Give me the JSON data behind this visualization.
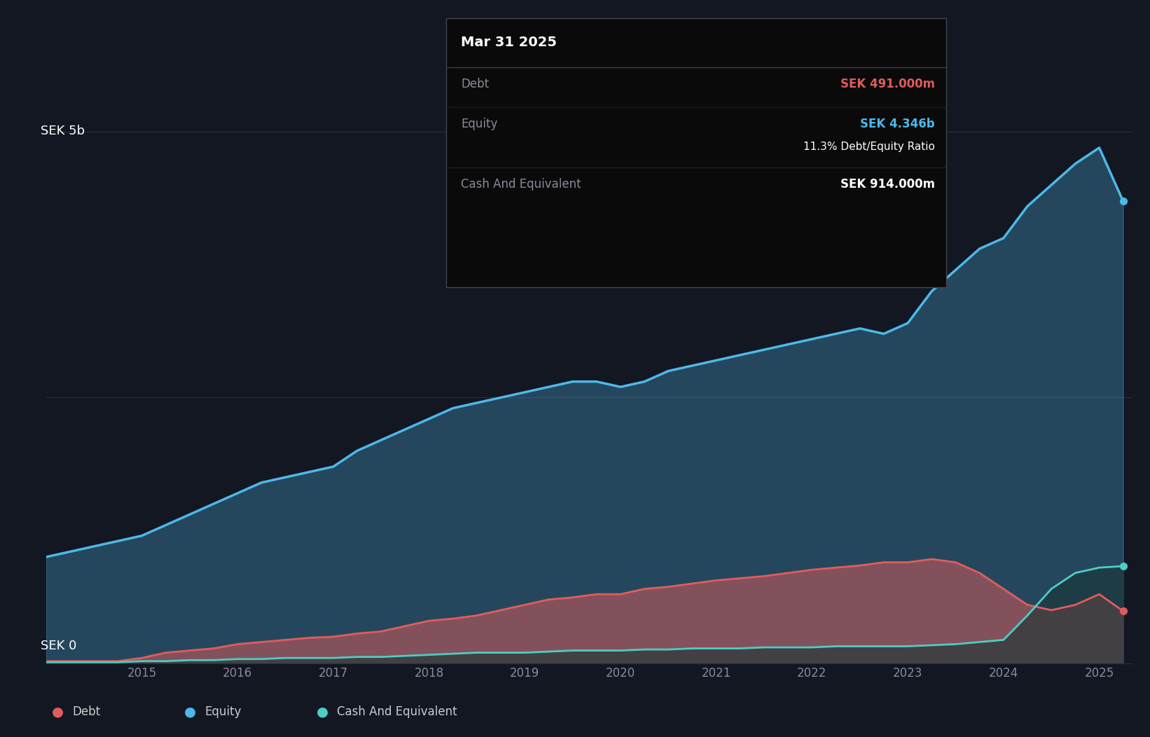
{
  "bg_color": "#131722",
  "plot_bg_color": "#131722",
  "grid_color": "#2a2e39",
  "y_label_top": "SEK 5b",
  "y_label_bottom": "SEK 0",
  "x_ticks": [
    "2015",
    "2016",
    "2017",
    "2018",
    "2019",
    "2020",
    "2021",
    "2022",
    "2023",
    "2024",
    "2025"
  ],
  "legend": [
    {
      "label": "Debt",
      "color": "#e05c5c"
    },
    {
      "label": "Equity",
      "color": "#4db8e8"
    },
    {
      "label": "Cash And Equivalent",
      "color": "#4ecdc4"
    }
  ],
  "tooltip": {
    "title": "Mar 31 2025",
    "debt_label": "Debt",
    "debt_value": "SEK 491.000m",
    "debt_color": "#e05c5c",
    "equity_label": "Equity",
    "equity_value": "SEK 4.346b",
    "equity_color": "#4db8e8",
    "ratio_text": "11.3% Debt/Equity Ratio",
    "cash_label": "Cash And Equivalent",
    "cash_value": "SEK 914.000m",
    "cash_color": "#ffffff"
  },
  "equity_data": {
    "dates": [
      2014.0,
      2014.25,
      2014.5,
      2014.75,
      2015.0,
      2015.25,
      2015.5,
      2015.75,
      2016.0,
      2016.25,
      2016.5,
      2016.75,
      2017.0,
      2017.25,
      2017.5,
      2017.75,
      2018.0,
      2018.25,
      2018.5,
      2018.75,
      2019.0,
      2019.25,
      2019.5,
      2019.75,
      2020.0,
      2020.25,
      2020.5,
      2020.75,
      2021.0,
      2021.25,
      2021.5,
      2021.75,
      2022.0,
      2022.25,
      2022.5,
      2022.75,
      2023.0,
      2023.25,
      2023.5,
      2023.75,
      2024.0,
      2024.25,
      2024.5,
      2024.75,
      2025.0,
      2025.25
    ],
    "values": [
      1.0,
      1.05,
      1.1,
      1.15,
      1.2,
      1.3,
      1.4,
      1.5,
      1.6,
      1.7,
      1.75,
      1.8,
      1.85,
      2.0,
      2.1,
      2.2,
      2.3,
      2.4,
      2.45,
      2.5,
      2.55,
      2.6,
      2.65,
      2.65,
      2.6,
      2.65,
      2.75,
      2.8,
      2.85,
      2.9,
      2.95,
      3.0,
      3.05,
      3.1,
      3.15,
      3.1,
      3.2,
      3.5,
      3.7,
      3.9,
      4.0,
      4.3,
      4.5,
      4.7,
      4.85,
      4.346
    ]
  },
  "debt_data": {
    "dates": [
      2014.0,
      2014.25,
      2014.5,
      2014.75,
      2015.0,
      2015.25,
      2015.5,
      2015.75,
      2016.0,
      2016.25,
      2016.5,
      2016.75,
      2017.0,
      2017.25,
      2017.5,
      2017.75,
      2018.0,
      2018.25,
      2018.5,
      2018.75,
      2019.0,
      2019.25,
      2019.5,
      2019.75,
      2020.0,
      2020.25,
      2020.5,
      2020.75,
      2021.0,
      2021.25,
      2021.5,
      2021.75,
      2022.0,
      2022.25,
      2022.5,
      2022.75,
      2023.0,
      2023.25,
      2023.5,
      2023.75,
      2024.0,
      2024.25,
      2024.5,
      2024.75,
      2025.0,
      2025.25
    ],
    "values": [
      0.02,
      0.02,
      0.02,
      0.02,
      0.05,
      0.1,
      0.12,
      0.14,
      0.18,
      0.2,
      0.22,
      0.24,
      0.25,
      0.28,
      0.3,
      0.35,
      0.4,
      0.42,
      0.45,
      0.5,
      0.55,
      0.6,
      0.62,
      0.65,
      0.65,
      0.7,
      0.72,
      0.75,
      0.78,
      0.8,
      0.82,
      0.85,
      0.88,
      0.9,
      0.92,
      0.95,
      0.95,
      0.98,
      0.95,
      0.85,
      0.7,
      0.55,
      0.5,
      0.55,
      0.65,
      0.491
    ]
  },
  "cash_data": {
    "dates": [
      2014.0,
      2014.25,
      2014.5,
      2014.75,
      2015.0,
      2015.25,
      2015.5,
      2015.75,
      2016.0,
      2016.25,
      2016.5,
      2016.75,
      2017.0,
      2017.25,
      2017.5,
      2017.75,
      2018.0,
      2018.25,
      2018.5,
      2018.75,
      2019.0,
      2019.25,
      2019.5,
      2019.75,
      2020.0,
      2020.25,
      2020.5,
      2020.75,
      2021.0,
      2021.25,
      2021.5,
      2021.75,
      2022.0,
      2022.25,
      2022.5,
      2022.75,
      2023.0,
      2023.25,
      2023.5,
      2023.75,
      2024.0,
      2024.25,
      2024.5,
      2024.75,
      2025.0,
      2025.25
    ],
    "values": [
      0.01,
      0.01,
      0.01,
      0.01,
      0.02,
      0.02,
      0.03,
      0.03,
      0.04,
      0.04,
      0.05,
      0.05,
      0.05,
      0.06,
      0.06,
      0.07,
      0.08,
      0.09,
      0.1,
      0.1,
      0.1,
      0.11,
      0.12,
      0.12,
      0.12,
      0.13,
      0.13,
      0.14,
      0.14,
      0.14,
      0.15,
      0.15,
      0.15,
      0.16,
      0.16,
      0.16,
      0.16,
      0.17,
      0.18,
      0.2,
      0.22,
      0.45,
      0.7,
      0.85,
      0.9,
      0.914
    ]
  },
  "ylim": [
    0,
    5.2
  ],
  "xlim": [
    2014.0,
    2025.35
  ]
}
